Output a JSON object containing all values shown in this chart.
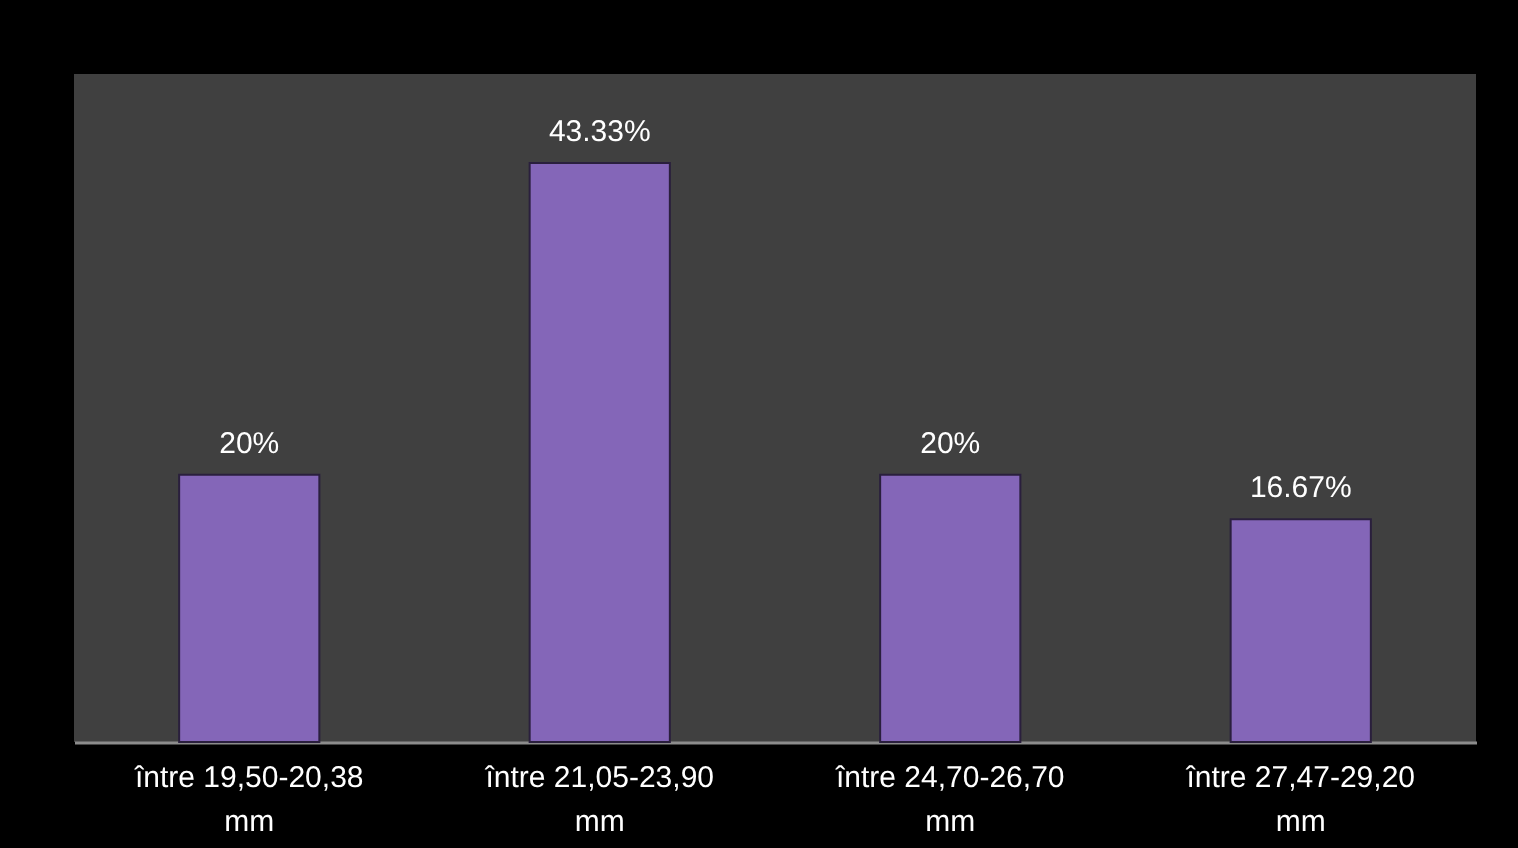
{
  "chart_data": {
    "type": "bar",
    "categories": [
      "între 19,50-20,38 mm",
      "între 21,05-23,90 mm",
      "între 24,70-26,70 mm",
      "între 27,47-29,20 mm"
    ],
    "values": [
      20,
      43.33,
      20,
      16.67
    ],
    "value_labels": [
      "20%",
      "43.33%",
      "20%",
      "16.67%"
    ],
    "color": "#8466b8",
    "ylim": [
      0,
      50
    ],
    "tick_labels": "x"
  }
}
